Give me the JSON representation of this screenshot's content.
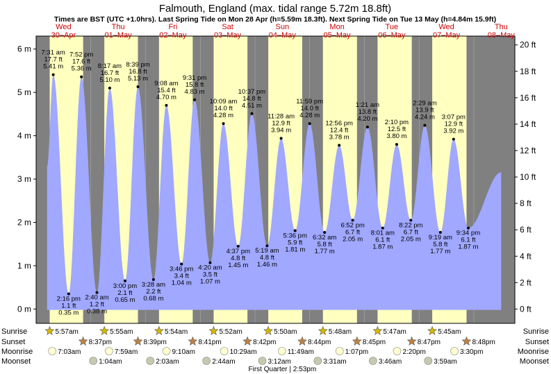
{
  "title": "Falmouth, England (max. tidal range 5.72m 18.8ft)",
  "subtitle": "Times are BST (UTC +1.0hrs). Last Spring Tide on Mon 28 Apr (h=5.59m 18.3ft). Next Spring Tide on Tue 13 May (h=4.84m 15.9ft)",
  "colors": {
    "day": "#ffffc0",
    "night": "#808080",
    "water": "#a0a8ff",
    "day_label": "#cc0000",
    "axis": "#000000"
  },
  "chart_data": {
    "type": "area",
    "y_unit_left": "m",
    "y_unit_right": "ft",
    "ylim_m": [
      -0.33,
      6.3
    ],
    "y_ticks_m": [
      0,
      1,
      2,
      3,
      4,
      5,
      6
    ],
    "y_ticks_ft": [
      0,
      2,
      4,
      6,
      8,
      10,
      12,
      14,
      16,
      18,
      20
    ],
    "x_day_start": 0,
    "x_day_end": 8.75,
    "days": [
      {
        "dow": "Wed",
        "date": "30–Apr"
      },
      {
        "dow": "Thu",
        "date": "01–May"
      },
      {
        "dow": "Fri",
        "date": "02–May"
      },
      {
        "dow": "Sat",
        "date": "03–May"
      },
      {
        "dow": "Sun",
        "date": "04–May"
      },
      {
        "dow": "Mon",
        "date": "05–May"
      },
      {
        "dow": "Tue",
        "date": "06–May"
      },
      {
        "dow": "Wed",
        "date": "07–May"
      },
      {
        "dow": "Thu",
        "date": "08–May"
      }
    ],
    "daylight": [
      {
        "sunrise": "5:57am",
        "sunset": "8:37pm"
      },
      {
        "sunrise": "5:55am",
        "sunset": "8:39pm"
      },
      {
        "sunrise": "5:54am",
        "sunset": "8:41pm"
      },
      {
        "sunrise": "5:52am",
        "sunset": "8:42pm"
      },
      {
        "sunrise": "5:50am",
        "sunset": "8:44pm"
      },
      {
        "sunrise": "5:48am",
        "sunset": "8:45pm"
      },
      {
        "sunrise": "5:47am",
        "sunset": "8:47pm"
      },
      {
        "sunrise": "5:45am",
        "sunset": "8:48pm"
      }
    ],
    "tides": [
      {
        "type": "high",
        "time": "7:31 am",
        "ft": "17.7 ft",
        "m": 5.41,
        "label_m": "5.41 m"
      },
      {
        "type": "low",
        "time": "2:16 pm",
        "ft": "1.1 ft",
        "m": 0.35,
        "label_m": "0.35 m"
      },
      {
        "type": "high",
        "time": "7:52 pm",
        "ft": "17.6 ft",
        "m": 5.36,
        "label_m": "5.36 m"
      },
      {
        "type": "low",
        "time": "2:40 am",
        "ft": "1.2 ft",
        "m": 0.38,
        "label_m": "0.38 m"
      },
      {
        "type": "high",
        "time": "8:17 am",
        "ft": "16.7 ft",
        "m": 5.1,
        "label_m": "5.10 m"
      },
      {
        "type": "low",
        "time": "3:00 pm",
        "ft": "2.1 ft",
        "m": 0.65,
        "label_m": "0.65 m"
      },
      {
        "type": "high",
        "time": "8:39 pm",
        "ft": "16.8 ft",
        "m": 5.13,
        "label_m": "5.13 m"
      },
      {
        "type": "low",
        "time": "3:28 am",
        "ft": "2.2 ft",
        "m": 0.68,
        "label_m": "0.68 m"
      },
      {
        "type": "high",
        "time": "9:08 am",
        "ft": "15.4 ft",
        "m": 4.7,
        "label_m": "4.70 m"
      },
      {
        "type": "low",
        "time": "3:46 pm",
        "ft": "3.4 ft",
        "m": 1.04,
        "label_m": "1.04 m"
      },
      {
        "type": "high",
        "time": "9:31 pm",
        "ft": "15.8 ft",
        "m": 4.83,
        "label_m": "4.83 m"
      },
      {
        "type": "low",
        "time": "4:20 am",
        "ft": "3.5 ft",
        "m": 1.07,
        "label_m": "1.07 m"
      },
      {
        "type": "high",
        "time": "10:09 am",
        "ft": "14.0 ft",
        "m": 4.28,
        "label_m": "4.28 m"
      },
      {
        "type": "low",
        "time": "4:37 pm",
        "ft": "4.8 ft",
        "m": 1.45,
        "label_m": "1.45 m"
      },
      {
        "type": "high",
        "time": "10:37 pm",
        "ft": "14.8 ft",
        "m": 4.51,
        "label_m": "4.51 m"
      },
      {
        "type": "low",
        "time": "5:19 am",
        "ft": "4.8 ft",
        "m": 1.46,
        "label_m": "1.46 m"
      },
      {
        "type": "high",
        "time": "11:28 am",
        "ft": "12.9 ft",
        "m": 3.94,
        "label_m": "3.94 m"
      },
      {
        "type": "low",
        "time": "5:36 pm",
        "ft": "5.9 ft",
        "m": 1.81,
        "label_m": "1.81 m"
      },
      {
        "type": "high",
        "time": "11:59 pm",
        "ft": "14.0 ft",
        "m": 4.28,
        "label_m": "4.28 m"
      },
      {
        "type": "low",
        "time": "6:32 am",
        "ft": "5.8 ft",
        "m": 1.77,
        "label_m": "1.77 m"
      },
      {
        "type": "high",
        "time": "12:56 pm",
        "ft": "12.4 ft",
        "m": 3.78,
        "label_m": "3.78 m"
      },
      {
        "type": "low",
        "time": "6:52 pm",
        "ft": "6.7 ft",
        "m": 2.05,
        "label_m": "2.05 m"
      },
      {
        "type": "high",
        "time": "1:21 am",
        "ft": "13.8 ft",
        "m": 4.2,
        "label_m": "4.20 m"
      },
      {
        "type": "low",
        "time": "8:01 am",
        "ft": "6.1 ft",
        "m": 1.87,
        "label_m": "1.87 m"
      },
      {
        "type": "high",
        "time": "2:10 pm",
        "ft": "12.5 ft",
        "m": 3.8,
        "label_m": "3.80 m"
      },
      {
        "type": "low",
        "time": "8:22 pm",
        "ft": "6.7 ft",
        "m": 2.05,
        "label_m": "2.05 m"
      },
      {
        "type": "high",
        "time": "2:29 am",
        "ft": "13.9 ft",
        "m": 4.24,
        "label_m": "4.24 m"
      },
      {
        "type": "low",
        "time": "9:19 am",
        "ft": "5.8 ft",
        "m": 1.77,
        "label_m": "1.77 m"
      },
      {
        "type": "high",
        "time": "3:07 pm",
        "ft": "12.9 ft",
        "m": 3.92,
        "label_m": "3.92 m"
      },
      {
        "type": "low",
        "time": "9:34 pm",
        "ft": "6.1 ft",
        "m": 1.87,
        "label_m": "1.87 m"
      }
    ],
    "moonrise": [
      "7:03am",
      "7:59am",
      "9:10am",
      "10:29am",
      "11:49am",
      "1:07pm",
      "2:20pm",
      "3:30pm"
    ],
    "moonset": [
      "1:04am",
      "2:03am",
      "2:44am",
      "3:12am",
      "3:31am",
      "3:46am",
      "3:59am"
    ],
    "moon_phase": "First Quarter | 2:53pm"
  },
  "row_labels": {
    "sunrise": "Sunrise",
    "sunset": "Sunset",
    "moonrise": "Moonrise",
    "moonset": "Moonset"
  }
}
